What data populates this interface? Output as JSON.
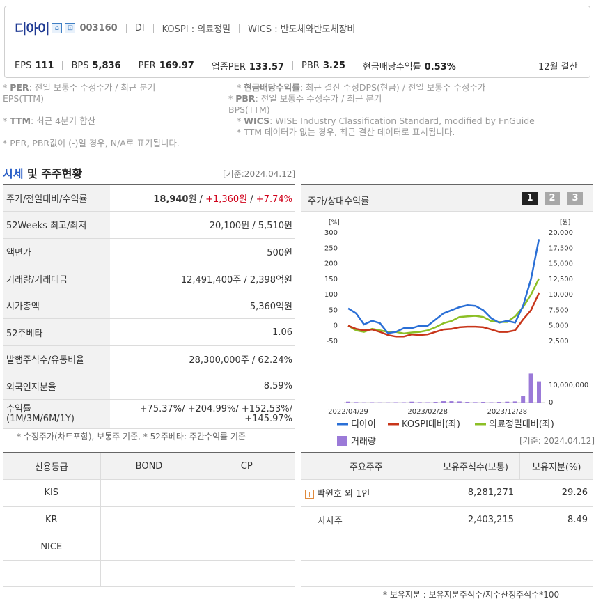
{
  "header": {
    "company": "디아이",
    "code": "003160",
    "market_code": "DI",
    "kospi": "KOSPI : 의료정밀",
    "wics": "WICS : 반도체와반도체장비",
    "metrics": [
      {
        "label": "EPS",
        "value": "111"
      },
      {
        "label": "BPS",
        "value": "5,836"
      },
      {
        "label": "PER",
        "value": "169.97"
      },
      {
        "label": "업종PER",
        "value": "133.57"
      },
      {
        "label": "PBR",
        "value": "3.25"
      },
      {
        "label": "현금배당수익률",
        "value": "0.53%"
      }
    ],
    "settlement": "12월 결산"
  },
  "notes": {
    "per_key": "PER",
    "per": ": 전일 보통주 수정주가 / 최근 분기",
    "per2": "EPS(TTM)",
    "ttm_key": "TTM",
    "ttm": ": 최근 4분기 합산",
    "neg": "* PER, PBR값이 (-)일 경우, N/A로 표기됩니다.",
    "div_key": "현금배당수익률",
    "div": ": 최근 결산 수정DPS(현금) / 전일 보통주 수정주가",
    "pbr_key": "PBR",
    "pbr": ": 전일 보통주 수정주가 / 최근 분기",
    "pbr2": "BPS(TTM)",
    "wics_key": "WICS",
    "wics": ": WISE Industry Classification Standard, modified by FnGuide",
    "ttm_none": "* TTM 데이터가 없는 경우, 최근 결산 데이터로 표시됩니다."
  },
  "section": {
    "title_blue": "시세",
    "title_rest": " 및 주주현황",
    "date": "[기준:2024.04.12]"
  },
  "price_table": {
    "rows": [
      {
        "label": "주가/전일대비/수익률",
        "price": "18,940",
        "unit": "원 / ",
        "change": "+1,360원",
        "sep": " / ",
        "rate": "+7.74%"
      },
      {
        "label": "52Weeks 최고/최저",
        "value": "20,100원 / 5,510원"
      },
      {
        "label": "액면가",
        "value": "500원"
      },
      {
        "label": "거래량/거래대금",
        "value": "12,491,400주 / 2,398억원"
      },
      {
        "label": "시가총액",
        "value": "5,360억원"
      },
      {
        "label": "52주베타",
        "value": "1.06"
      },
      {
        "label": "발행주식수/유동비율",
        "value": "28,300,000주 / 62.24%"
      },
      {
        "label": "외국인지분율",
        "value": "8.59%"
      }
    ],
    "returns_label": "수익률",
    "returns_sub": "(1M/3M/6M/1Y)",
    "returns_line1": "+75.37%/ +204.99%/ +152.53%/",
    "returns_line2": "+145.97%",
    "footnote": "* 수정주가(차트포함), 보통주 기준, * 52주베타: 주간수익률 기준"
  },
  "chart": {
    "title": "주가/상대수익률",
    "pages": [
      "1",
      "2",
      "3"
    ],
    "left_unit": "[%]",
    "right_unit": "[원]",
    "left_ticks": [
      "300",
      "250",
      "200",
      "150",
      "100",
      "50",
      "0",
      "-50"
    ],
    "right_ticks": [
      "20,000",
      "17,500",
      "15,000",
      "12,500",
      "10,000",
      "7,500",
      "5,000",
      "2,500"
    ],
    "vol_ticks": [
      "10,000,000",
      "0"
    ],
    "x_ticks": [
      "2022/04/29",
      "2023/02/28",
      "2023/12/28"
    ],
    "legend": [
      "디아이",
      "KOSPI대비(좌)",
      "의료정밀대비(좌)",
      "거래량"
    ],
    "colors": {
      "price": "#2a6fd6",
      "kospi": "#c8351a",
      "sector": "#8cbf26",
      "volume": "#9b7ad8"
    }
  },
  "chart_data": {
    "type": "line",
    "title": "주가/상대수익률",
    "x": [
      "2022/04",
      "2022/05",
      "2022/06",
      "2022/07",
      "2022/08",
      "2022/09",
      "2022/10",
      "2022/11",
      "2022/12",
      "2023/01",
      "2023/02",
      "2023/03",
      "2023/04",
      "2023/05",
      "2023/06",
      "2023/07",
      "2023/08",
      "2023/09",
      "2023/10",
      "2023/11",
      "2023/12",
      "2024/01",
      "2024/02",
      "2024/03",
      "2024/04"
    ],
    "series": [
      {
        "name": "디아이",
        "axis": "right",
        "values": [
          7800,
          7000,
          5200,
          5800,
          5400,
          3800,
          4000,
          4600,
          4600,
          5000,
          5000,
          6000,
          7000,
          7500,
          8000,
          8300,
          8200,
          7500,
          6200,
          5500,
          5800,
          5500,
          8200,
          12500,
          18940
        ]
      },
      {
        "name": "KOSPI대비(좌)",
        "axis": "left",
        "values": [
          0,
          -10,
          -15,
          -12,
          -20,
          -30,
          -35,
          -35,
          -28,
          -30,
          -28,
          -20,
          -12,
          -10,
          -5,
          -3,
          -3,
          -5,
          -12,
          -20,
          -20,
          -15,
          20,
          50,
          105
        ]
      },
      {
        "name": "의료정밀대비(좌)",
        "axis": "left",
        "values": [
          0,
          -15,
          -20,
          -10,
          -15,
          -20,
          -20,
          -25,
          -22,
          -20,
          -15,
          -5,
          8,
          15,
          28,
          30,
          32,
          28,
          15,
          12,
          12,
          30,
          60,
          100,
          152
        ]
      },
      {
        "name": "거래량",
        "axis": "volume",
        "values": [
          400000,
          200000,
          100000,
          150000,
          100000,
          100000,
          150000,
          150000,
          400000,
          200000,
          150000,
          300000,
          600000,
          600000,
          500000,
          300000,
          200000,
          300000,
          150000,
          300000,
          400000,
          500000,
          3000000,
          13000000,
          9500000
        ]
      }
    ],
    "left_ylim": [
      -50,
      300
    ],
    "right_ylim": [
      2500,
      20000
    ],
    "volume_ylim": [
      0,
      15000000
    ],
    "legend_position": "bottom"
  },
  "credit": {
    "headers": [
      "신용등급",
      "BOND",
      "CP"
    ],
    "rows": [
      [
        "KIS",
        "",
        ""
      ],
      [
        "KR",
        "",
        ""
      ],
      [
        "NICE",
        "",
        ""
      ],
      [
        "",
        "",
        ""
      ]
    ]
  },
  "holders": {
    "date": "[기준: 2024.04.12]",
    "headers": [
      "주요주주",
      "보유주식수(보통)",
      "보유지분(%)"
    ],
    "rows": [
      {
        "name": "박원호 외 1인",
        "shares": "8,281,271",
        "pct": "29.26",
        "expand": true
      },
      {
        "name": "자사주",
        "shares": "2,403,215",
        "pct": "8.49",
        "expand": false
      },
      {
        "name": "",
        "shares": "",
        "pct": "",
        "expand": false
      },
      {
        "name": "",
        "shares": "",
        "pct": "",
        "expand": false
      }
    ],
    "footnote": "* 보유지분 : 보유지분주식수/지수산정주식수*100"
  }
}
